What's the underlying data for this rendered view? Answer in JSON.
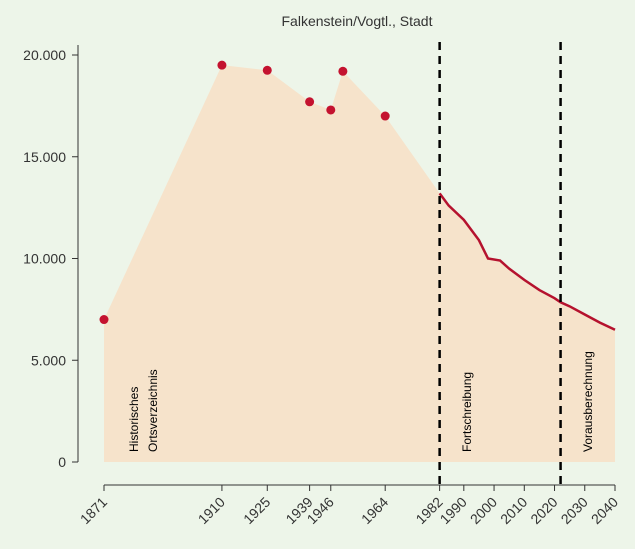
{
  "chart_data": {
    "type": "area",
    "title": "Falkenstein/Vogtl., Stadt",
    "series": [
      {
        "name": "Historisches Ortsverzeichnis",
        "color": "#c4122f",
        "x": [
          1871,
          1910,
          1925,
          1939,
          1946,
          1950,
          1964
        ],
        "values": [
          7000,
          19500,
          19250,
          17700,
          17300,
          19200,
          17000
        ]
      },
      {
        "name": "Fortschreibung",
        "color": "#b5122e",
        "x": [
          1982,
          1985,
          1990,
          1995,
          1998,
          2002,
          2005,
          2010,
          2015,
          2020,
          2022,
          2025,
          2030,
          2035,
          2040
        ],
        "values": [
          13200,
          12600,
          11900,
          10900,
          10000,
          9900,
          9500,
          8950,
          8450,
          8050,
          7850,
          7650,
          7250,
          6850,
          6500
        ]
      }
    ],
    "area_color": "#f6e3cb",
    "vlines": [
      1982,
      2022
    ],
    "annotations": [
      "Historisches",
      "Ortsverzeichnis",
      "Fortschreibung",
      "Vorausberechnung"
    ],
    "xlim": [
      1871,
      2040
    ],
    "xticks": [
      1871,
      1910,
      1925,
      1939,
      1946,
      1964,
      1982,
      1990,
      2000,
      2010,
      2020,
      2030,
      2040
    ],
    "ylim": [
      0,
      20000
    ],
    "yticks": [
      0,
      {
        "value": 5000,
        "label": "5.000"
      },
      {
        "value": 10000,
        "label": "10.000"
      },
      {
        "value": 15000,
        "label": "15.000"
      },
      {
        "value": 20000,
        "label": "20.000"
      }
    ]
  }
}
